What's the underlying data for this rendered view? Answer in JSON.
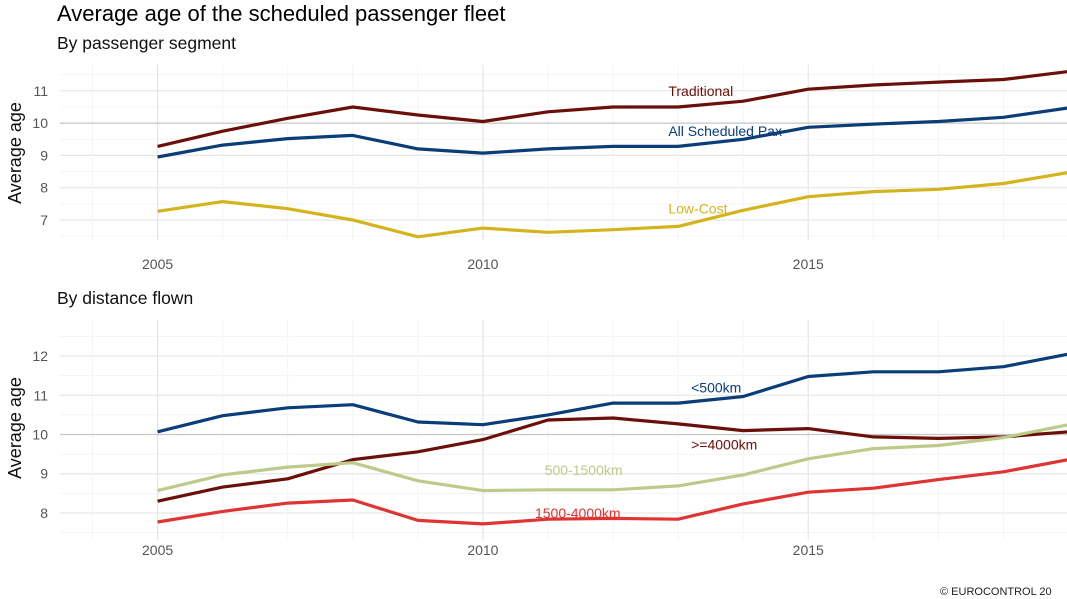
{
  "title": "Average age of the scheduled passenger fleet",
  "copyright": "© EUROCONTROL 20",
  "chart_data": [
    {
      "type": "line",
      "subtitle": "By passenger segment",
      "ylabel": "Average age",
      "xlabel": "",
      "x": [
        2005,
        2006,
        2007,
        2008,
        2009,
        2010,
        2011,
        2012,
        2013,
        2014,
        2015,
        2016,
        2017,
        2018,
        2019
      ],
      "xticks": [
        2005,
        2010,
        2015
      ],
      "yticks": [
        7,
        8,
        9,
        10,
        11
      ],
      "ylim": [
        6.38,
        11.8
      ],
      "xlim": [
        2003.5,
        2019
      ],
      "grid": true,
      "reference_line": 10,
      "series": [
        {
          "name": "Traditional",
          "color": "#6b0f0a",
          "values": [
            9.28,
            9.75,
            10.15,
            10.5,
            10.25,
            10.05,
            10.35,
            10.5,
            10.5,
            10.68,
            11.05,
            11.18,
            11.27,
            11.35,
            11.6
          ]
        },
        {
          "name": "All Scheduled Pax",
          "color": "#0b3d78",
          "values": [
            8.95,
            9.32,
            9.52,
            9.62,
            9.2,
            9.07,
            9.2,
            9.28,
            9.28,
            9.5,
            9.87,
            9.97,
            10.05,
            10.18,
            10.47
          ]
        },
        {
          "name": "Low-Cost",
          "color": "#d4b41c",
          "values": [
            7.27,
            7.57,
            7.35,
            7.0,
            6.48,
            6.75,
            6.62,
            6.7,
            6.8,
            7.3,
            7.72,
            7.88,
            7.95,
            8.13,
            8.47
          ]
        }
      ]
    },
    {
      "type": "line",
      "subtitle": "By distance flown",
      "ylabel": "Average age",
      "xlabel": "",
      "x": [
        2005,
        2006,
        2007,
        2008,
        2009,
        2010,
        2011,
        2012,
        2013,
        2014,
        2015,
        2016,
        2017,
        2018,
        2019
      ],
      "xticks": [
        2005,
        2010,
        2015
      ],
      "yticks": [
        8,
        9,
        10,
        11,
        12
      ],
      "ylim": [
        7.31,
        12.92
      ],
      "xlim": [
        2003.5,
        2019
      ],
      "grid": true,
      "reference_line": 10,
      "series": [
        {
          "name": "<500km",
          "color": "#0b3d78",
          "values": [
            10.07,
            10.48,
            10.68,
            10.76,
            10.32,
            10.25,
            10.5,
            10.8,
            10.8,
            10.97,
            11.48,
            11.6,
            11.6,
            11.73,
            12.05
          ]
        },
        {
          "name": ">=4000km",
          "color": "#6b0f0a",
          "values": [
            8.3,
            8.66,
            8.87,
            9.36,
            9.56,
            9.87,
            10.37,
            10.42,
            10.27,
            10.1,
            10.15,
            9.94,
            9.9,
            9.94,
            10.07
          ]
        },
        {
          "name": "500-1500km",
          "color": "#bccb8a",
          "values": [
            8.57,
            8.97,
            9.17,
            9.28,
            8.82,
            8.57,
            8.59,
            8.59,
            8.69,
            8.97,
            9.38,
            9.64,
            9.72,
            9.92,
            10.25
          ]
        },
        {
          "name": "1500-4000km",
          "color": "#e03434",
          "values": [
            7.77,
            8.04,
            8.25,
            8.33,
            7.81,
            7.72,
            7.84,
            7.86,
            7.84,
            8.23,
            8.53,
            8.63,
            8.85,
            9.05,
            9.36
          ]
        }
      ]
    }
  ]
}
